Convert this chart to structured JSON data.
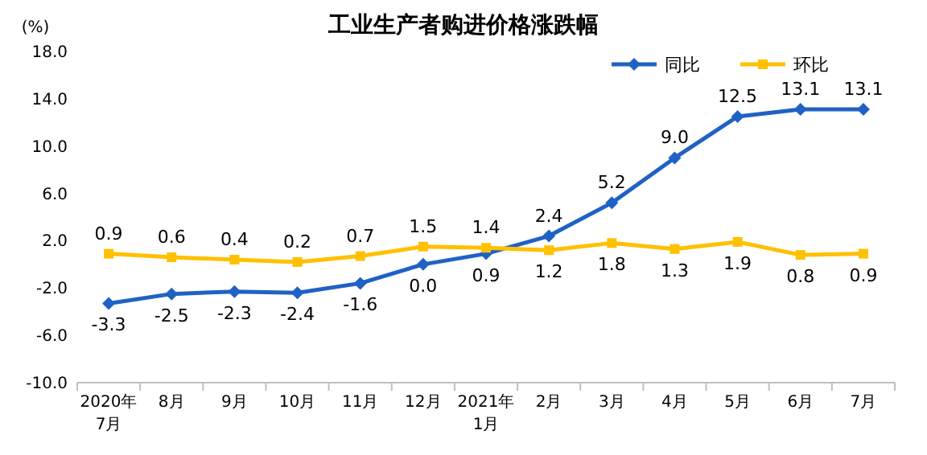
{
  "chart_data": {
    "type": "line",
    "title": "工业生产者购进价格涨跌幅",
    "ylabel": "(%)",
    "categories": [
      "2020年\n7月",
      "8月",
      "9月",
      "10月",
      "11月",
      "12月",
      "2021年\n1月",
      "2月",
      "3月",
      "4月",
      "5月",
      "6月",
      "7月"
    ],
    "series": [
      {
        "name": "同比",
        "color": "#1f62c4",
        "marker": "diamond",
        "values": [
          -3.3,
          -2.5,
          -2.3,
          -2.4,
          -1.6,
          0.0,
          0.9,
          2.4,
          5.2,
          9.0,
          12.5,
          13.1,
          13.1
        ],
        "value_labels": [
          "-3.3",
          "-2.5",
          "-2.3",
          "-2.4",
          "-1.6",
          "0.0",
          "0.9",
          "2.4",
          "5.2",
          "9.0",
          "12.5",
          "13.1",
          "13.1"
        ]
      },
      {
        "name": "环比",
        "color": "#ffc000",
        "marker": "square",
        "values": [
          0.9,
          0.6,
          0.4,
          0.2,
          0.7,
          1.5,
          1.4,
          1.2,
          1.8,
          1.3,
          1.9,
          0.8,
          0.9
        ],
        "value_labels": [
          "0.9",
          "0.6",
          "0.4",
          "0.2",
          "0.7",
          "1.5",
          "1.4",
          "1.2",
          "1.8",
          "1.3",
          "1.9",
          "0.8",
          "0.9"
        ]
      }
    ],
    "ylim": [
      -10,
      18
    ],
    "yticks": [
      {
        "value": -10,
        "label": "-10.0"
      },
      {
        "value": -6,
        "label": "-6.0"
      },
      {
        "value": -2,
        "label": "-2.0"
      },
      {
        "value": 2,
        "label": "2.0"
      },
      {
        "value": 6,
        "label": "6.0"
      },
      {
        "value": 10,
        "label": "10.0"
      },
      {
        "value": 14,
        "label": "14.0"
      },
      {
        "value": 18,
        "label": "18.0"
      }
    ],
    "legend": "top right"
  }
}
